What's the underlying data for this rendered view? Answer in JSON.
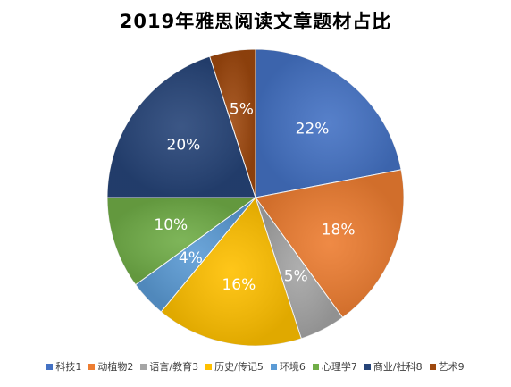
{
  "chart_data": {
    "type": "pie",
    "title": "2019年雅思阅读文章题材占比",
    "categories": [
      "科技1",
      "动植物2",
      "语言/教育3",
      "历史/传记5",
      "环境6",
      "心理学7",
      "商业/社科8",
      "艺术9"
    ],
    "values": [
      22,
      18,
      5,
      16,
      4,
      10,
      20,
      5
    ],
    "labels": [
      "22%",
      "18%",
      "5%",
      "16%",
      "4%",
      "10%",
      "20%",
      "5%"
    ],
    "colors": [
      "#4472C4",
      "#ED7D31",
      "#A5A5A5",
      "#FFC000",
      "#5B9BD5",
      "#70AD47",
      "#264478",
      "#9E480E"
    ],
    "legend_position": "bottom",
    "start_angle": "top-clockwise"
  }
}
